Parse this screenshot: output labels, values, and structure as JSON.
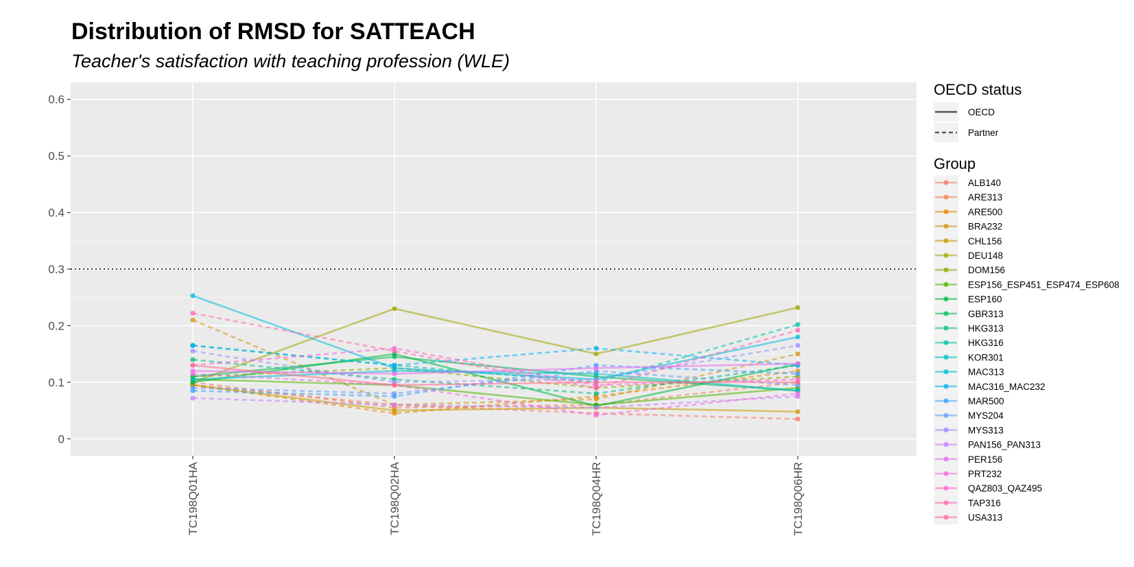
{
  "chart_data": {
    "type": "line",
    "title": "Distribution of RMSD for SATTEACH",
    "subtitle": "Teacher's satisfaction with teaching profession (WLE)",
    "xlabel": "",
    "ylabel": "",
    "categories": [
      "TC198Q01HA",
      "TC198Q02HA",
      "TC198Q04HR",
      "TC198Q06HR"
    ],
    "ylim": [
      -0.03,
      0.63
    ],
    "yticks": [
      "0",
      "0.1",
      "0.2",
      "0.3",
      "0.4",
      "0.5",
      "0.6"
    ],
    "reference_line": 0.3,
    "grid": true,
    "legend_position": "right",
    "linetype_legend": {
      "title": "OECD status",
      "entries": [
        {
          "label": "OECD",
          "linetype": "solid"
        },
        {
          "label": "Partner",
          "linetype": "dashed"
        }
      ]
    },
    "color_legend_title": "Group",
    "series": [
      {
        "name": "ALB140",
        "color": "#F8766D",
        "status": "Partner",
        "values": [
          0.095,
          0.06,
          0.045,
          0.035
        ]
      },
      {
        "name": "ARE313",
        "color": "#F0814E",
        "status": "Partner",
        "values": [
          0.1,
          0.055,
          0.06,
          0.1
        ]
      },
      {
        "name": "ARE500",
        "color": "#E58700",
        "status": "Partner",
        "values": [
          0.095,
          0.045,
          0.075,
          0.12
        ]
      },
      {
        "name": "BRA232",
        "color": "#D3940F",
        "status": "Partner",
        "values": [
          0.21,
          0.06,
          0.07,
          0.15
        ]
      },
      {
        "name": "CHL156",
        "color": "#C49A00",
        "status": "OECD",
        "values": [
          0.095,
          0.05,
          0.055,
          0.048
        ]
      },
      {
        "name": "DEU148",
        "color": "#A3A500",
        "status": "OECD",
        "values": [
          0.1,
          0.23,
          0.15,
          0.232
        ]
      },
      {
        "name": "DOM156",
        "color": "#8BAB00",
        "status": "Partner",
        "values": [
          0.11,
          0.125,
          0.09,
          0.11
        ]
      },
      {
        "name": "ESP156_ESP451_ESP474_ESP608",
        "color": "#53B400",
        "status": "OECD",
        "values": [
          0.105,
          0.095,
          0.06,
          0.09
        ]
      },
      {
        "name": "ESP160",
        "color": "#00B83C",
        "status": "OECD",
        "values": [
          0.1,
          0.15,
          0.058,
          0.132
        ]
      },
      {
        "name": "GBR313",
        "color": "#00BC56",
        "status": "OECD",
        "values": [
          0.11,
          0.145,
          0.11,
          0.085
        ]
      },
      {
        "name": "HKG313",
        "color": "#00BE83",
        "status": "Partner",
        "values": [
          0.14,
          0.105,
          0.08,
          0.13
        ]
      },
      {
        "name": "HKG316",
        "color": "#00C1A3",
        "status": "Partner",
        "values": [
          0.165,
          0.13,
          0.1,
          0.202
        ]
      },
      {
        "name": "KOR301",
        "color": "#00BFC4",
        "status": "OECD",
        "values": [
          0.105,
          0.12,
          0.115,
          0.085
        ]
      },
      {
        "name": "MAC313",
        "color": "#00BAE0",
        "status": "OECD",
        "values": [
          0.253,
          0.125,
          0.105,
          0.18
        ]
      },
      {
        "name": "MAC316_MAC232",
        "color": "#00B0F6",
        "status": "Partner",
        "values": [
          0.165,
          0.13,
          0.16,
          0.13
        ]
      },
      {
        "name": "MAR500",
        "color": "#35A2FF",
        "status": "Partner",
        "values": [
          0.085,
          0.075,
          0.13,
          0.115
        ]
      },
      {
        "name": "MYS204",
        "color": "#619CFF",
        "status": "Partner",
        "values": [
          0.09,
          0.08,
          0.12,
          0.095
        ]
      },
      {
        "name": "MYS313",
        "color": "#9590FF",
        "status": "Partner",
        "values": [
          0.155,
          0.1,
          0.105,
          0.165
        ]
      },
      {
        "name": "PAN156_PAN313",
        "color": "#C77CFF",
        "status": "Partner",
        "values": [
          0.072,
          0.06,
          0.055,
          0.075
        ]
      },
      {
        "name": "PER156",
        "color": "#E76BF3",
        "status": "OECD",
        "values": [
          0.12,
          0.115,
          0.125,
          0.133
        ]
      },
      {
        "name": "PRT232",
        "color": "#F564E3",
        "status": "Partner",
        "values": [
          0.115,
          0.095,
          0.042,
          0.08
        ]
      },
      {
        "name": "QAZ803_QAZ495",
        "color": "#FD61D1",
        "status": "Partner",
        "values": [
          0.13,
          0.16,
          0.095,
          0.105
        ]
      },
      {
        "name": "TAP316",
        "color": "#FF64B0",
        "status": "Partner",
        "values": [
          0.222,
          0.155,
          0.09,
          0.192
        ]
      },
      {
        "name": "USA313",
        "color": "#FF6C91",
        "status": "OECD",
        "values": [
          0.13,
          0.095,
          0.1,
          0.1
        ]
      }
    ]
  }
}
